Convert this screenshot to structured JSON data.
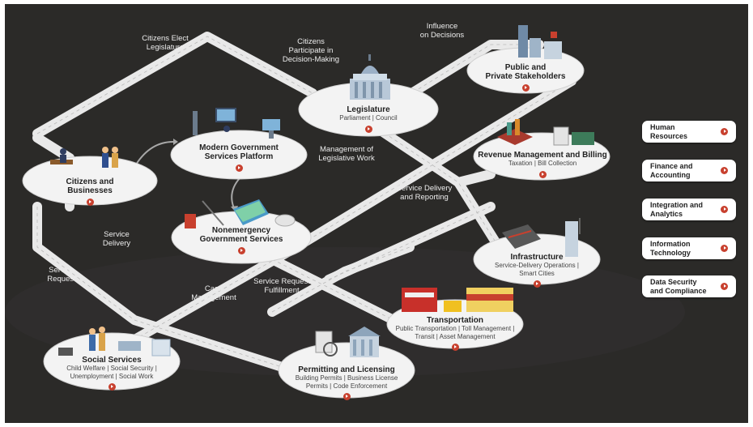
{
  "colors": {
    "background": "#2b2a28",
    "road": "#ececec",
    "accent_play": "#c8402e"
  },
  "road_labels": {
    "citizens_elect": "Citizens Elect\nLegislature",
    "citizens_participate": "Citizens\nParticipate in\nDecision-Making",
    "influence": "Influence\non Decisions",
    "management_legislative": "Management of\nLegislative Work",
    "service_delivery_reporting": "Service Delivery\nand Reporting",
    "service_delivery": "Service\nDelivery",
    "service_request": "Service\nRequest",
    "case_management": "Case\nManagement",
    "service_request_fulfillment": "Service Request\nFulfillment"
  },
  "nodes": {
    "citizens": {
      "title": "Citizens and\nBusinesses"
    },
    "platform": {
      "title": "Modern Government\nServices Platform"
    },
    "legislature": {
      "title": "Legislature",
      "sub": "Parliament | Council"
    },
    "stakeholders": {
      "title": "Public and\nPrivate Stakeholders"
    },
    "revenue": {
      "title": "Revenue Management and Billing",
      "sub": "Taxation | Bill Collection"
    },
    "nonemergency": {
      "title": "Nonemergency\nGovernment Services"
    },
    "infrastructure": {
      "title": "Infrastructure",
      "sub": "Service-Delivery Operations |\nSmart Cities"
    },
    "transportation": {
      "title": "Transportation",
      "sub": "Public Transportation | Toll Management |\nTransit | Asset Management"
    },
    "social": {
      "title": "Social Services",
      "sub": "Child Welfare | Social Security |\nUnemployment | Social Work"
    },
    "permitting": {
      "title": "Permitting and Licensing",
      "sub": "Building Permits | Business License\nPermits | Code Enforcement"
    }
  },
  "side_buttons": [
    {
      "label": "Human\nResources"
    },
    {
      "label": "Finance and\nAccounting"
    },
    {
      "label": "Integration and\nAnalytics"
    },
    {
      "label": "Information\nTechnology"
    },
    {
      "label": "Data Security\nand Compliance"
    }
  ]
}
